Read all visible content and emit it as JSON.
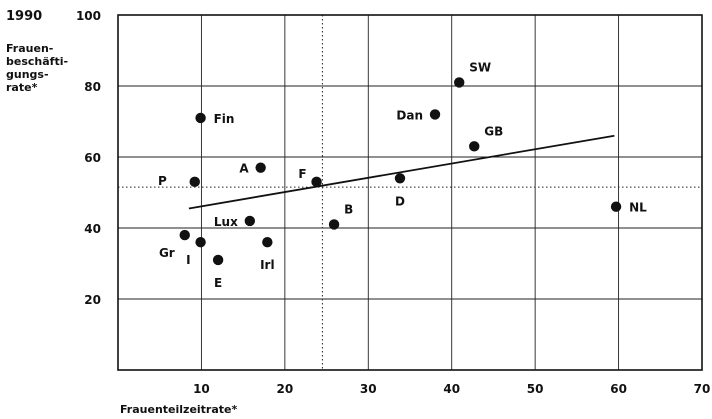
{
  "chart_data": {
    "type": "scatter",
    "year_label": "1990",
    "ylabel_lines": [
      "Frauen-",
      "beschäfti-",
      "gungs-",
      "rate*"
    ],
    "xlabel": "Frauenteilzeitrate*",
    "xlim": [
      0,
      70
    ],
    "ylim": [
      0,
      100
    ],
    "x_ticks": [
      10,
      20,
      30,
      40,
      50,
      60,
      70
    ],
    "y_ticks": [
      20,
      40,
      60,
      80,
      100
    ],
    "grid": true,
    "reference_lines": {
      "x": 24.5,
      "y": 51.5
    },
    "trend_line": {
      "x": [
        8.5,
        59.5
      ],
      "y": [
        45.5,
        66
      ]
    },
    "points": [
      {
        "label": "SW",
        "x": 40.9,
        "y": 81,
        "label_pos": "above-right"
      },
      {
        "label": "Dan",
        "x": 38.0,
        "y": 72,
        "label_pos": "left"
      },
      {
        "label": "Fin",
        "x": 9.9,
        "y": 71,
        "label_pos": "right"
      },
      {
        "label": "GB",
        "x": 42.7,
        "y": 63,
        "label_pos": "above-right"
      },
      {
        "label": "A",
        "x": 17.1,
        "y": 57,
        "label_pos": "left"
      },
      {
        "label": "D",
        "x": 33.8,
        "y": 54,
        "label_pos": "below"
      },
      {
        "label": "F",
        "x": 23.8,
        "y": 53,
        "label_pos": "above-left"
      },
      {
        "label": "P",
        "x": 9.2,
        "y": 53,
        "label_pos": "far-left"
      },
      {
        "label": "NL",
        "x": 59.7,
        "y": 46,
        "label_pos": "right"
      },
      {
        "label": "Lux",
        "x": 15.8,
        "y": 42,
        "label_pos": "left"
      },
      {
        "label": "B",
        "x": 25.9,
        "y": 41,
        "label_pos": "above-right"
      },
      {
        "label": "Gr",
        "x": 8.0,
        "y": 38,
        "label_pos": "below-left"
      },
      {
        "label": "I",
        "x": 9.9,
        "y": 36,
        "label_pos": "below-left"
      },
      {
        "label": "Irl",
        "x": 17.9,
        "y": 36,
        "label_pos": "below"
      },
      {
        "label": "E",
        "x": 12.0,
        "y": 31,
        "label_pos": "below"
      }
    ]
  }
}
